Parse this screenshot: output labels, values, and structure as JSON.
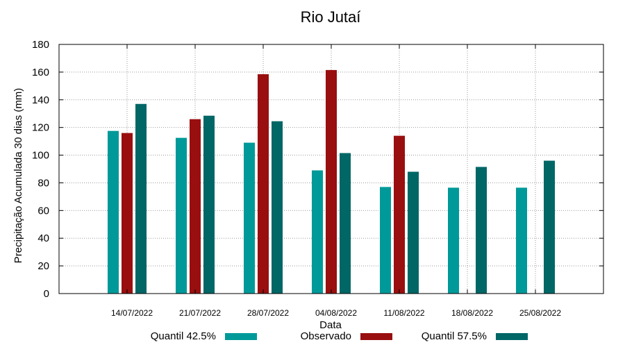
{
  "chart_data": {
    "type": "bar",
    "title": "Rio Jutaí",
    "xlabel": "Data",
    "ylabel": "Precipitação Acumulada 30 dias (mm)",
    "ylim": [
      0,
      180
    ],
    "yticks": [
      0,
      20,
      40,
      60,
      80,
      100,
      120,
      140,
      160,
      180
    ],
    "grid": true,
    "legend_position": "bottom",
    "categories": [
      "14/07/2022",
      "21/07/2022",
      "28/07/2022",
      "04/08/2022",
      "11/08/2022",
      "18/08/2022",
      "25/08/2022"
    ],
    "series": [
      {
        "name": "Quantil 42.5%",
        "color": "#009999",
        "values": [
          117.5,
          112.5,
          109,
          89,
          77,
          76.5,
          76.5
        ]
      },
      {
        "name": "Observado",
        "color": "#990f0f",
        "values": [
          116,
          126,
          158.5,
          161.5,
          114,
          null,
          null
        ]
      },
      {
        "name": "Quantil 57.5%",
        "color": "#006666",
        "values": [
          137,
          128.5,
          124.5,
          101.5,
          88,
          91.5,
          96
        ]
      }
    ]
  }
}
